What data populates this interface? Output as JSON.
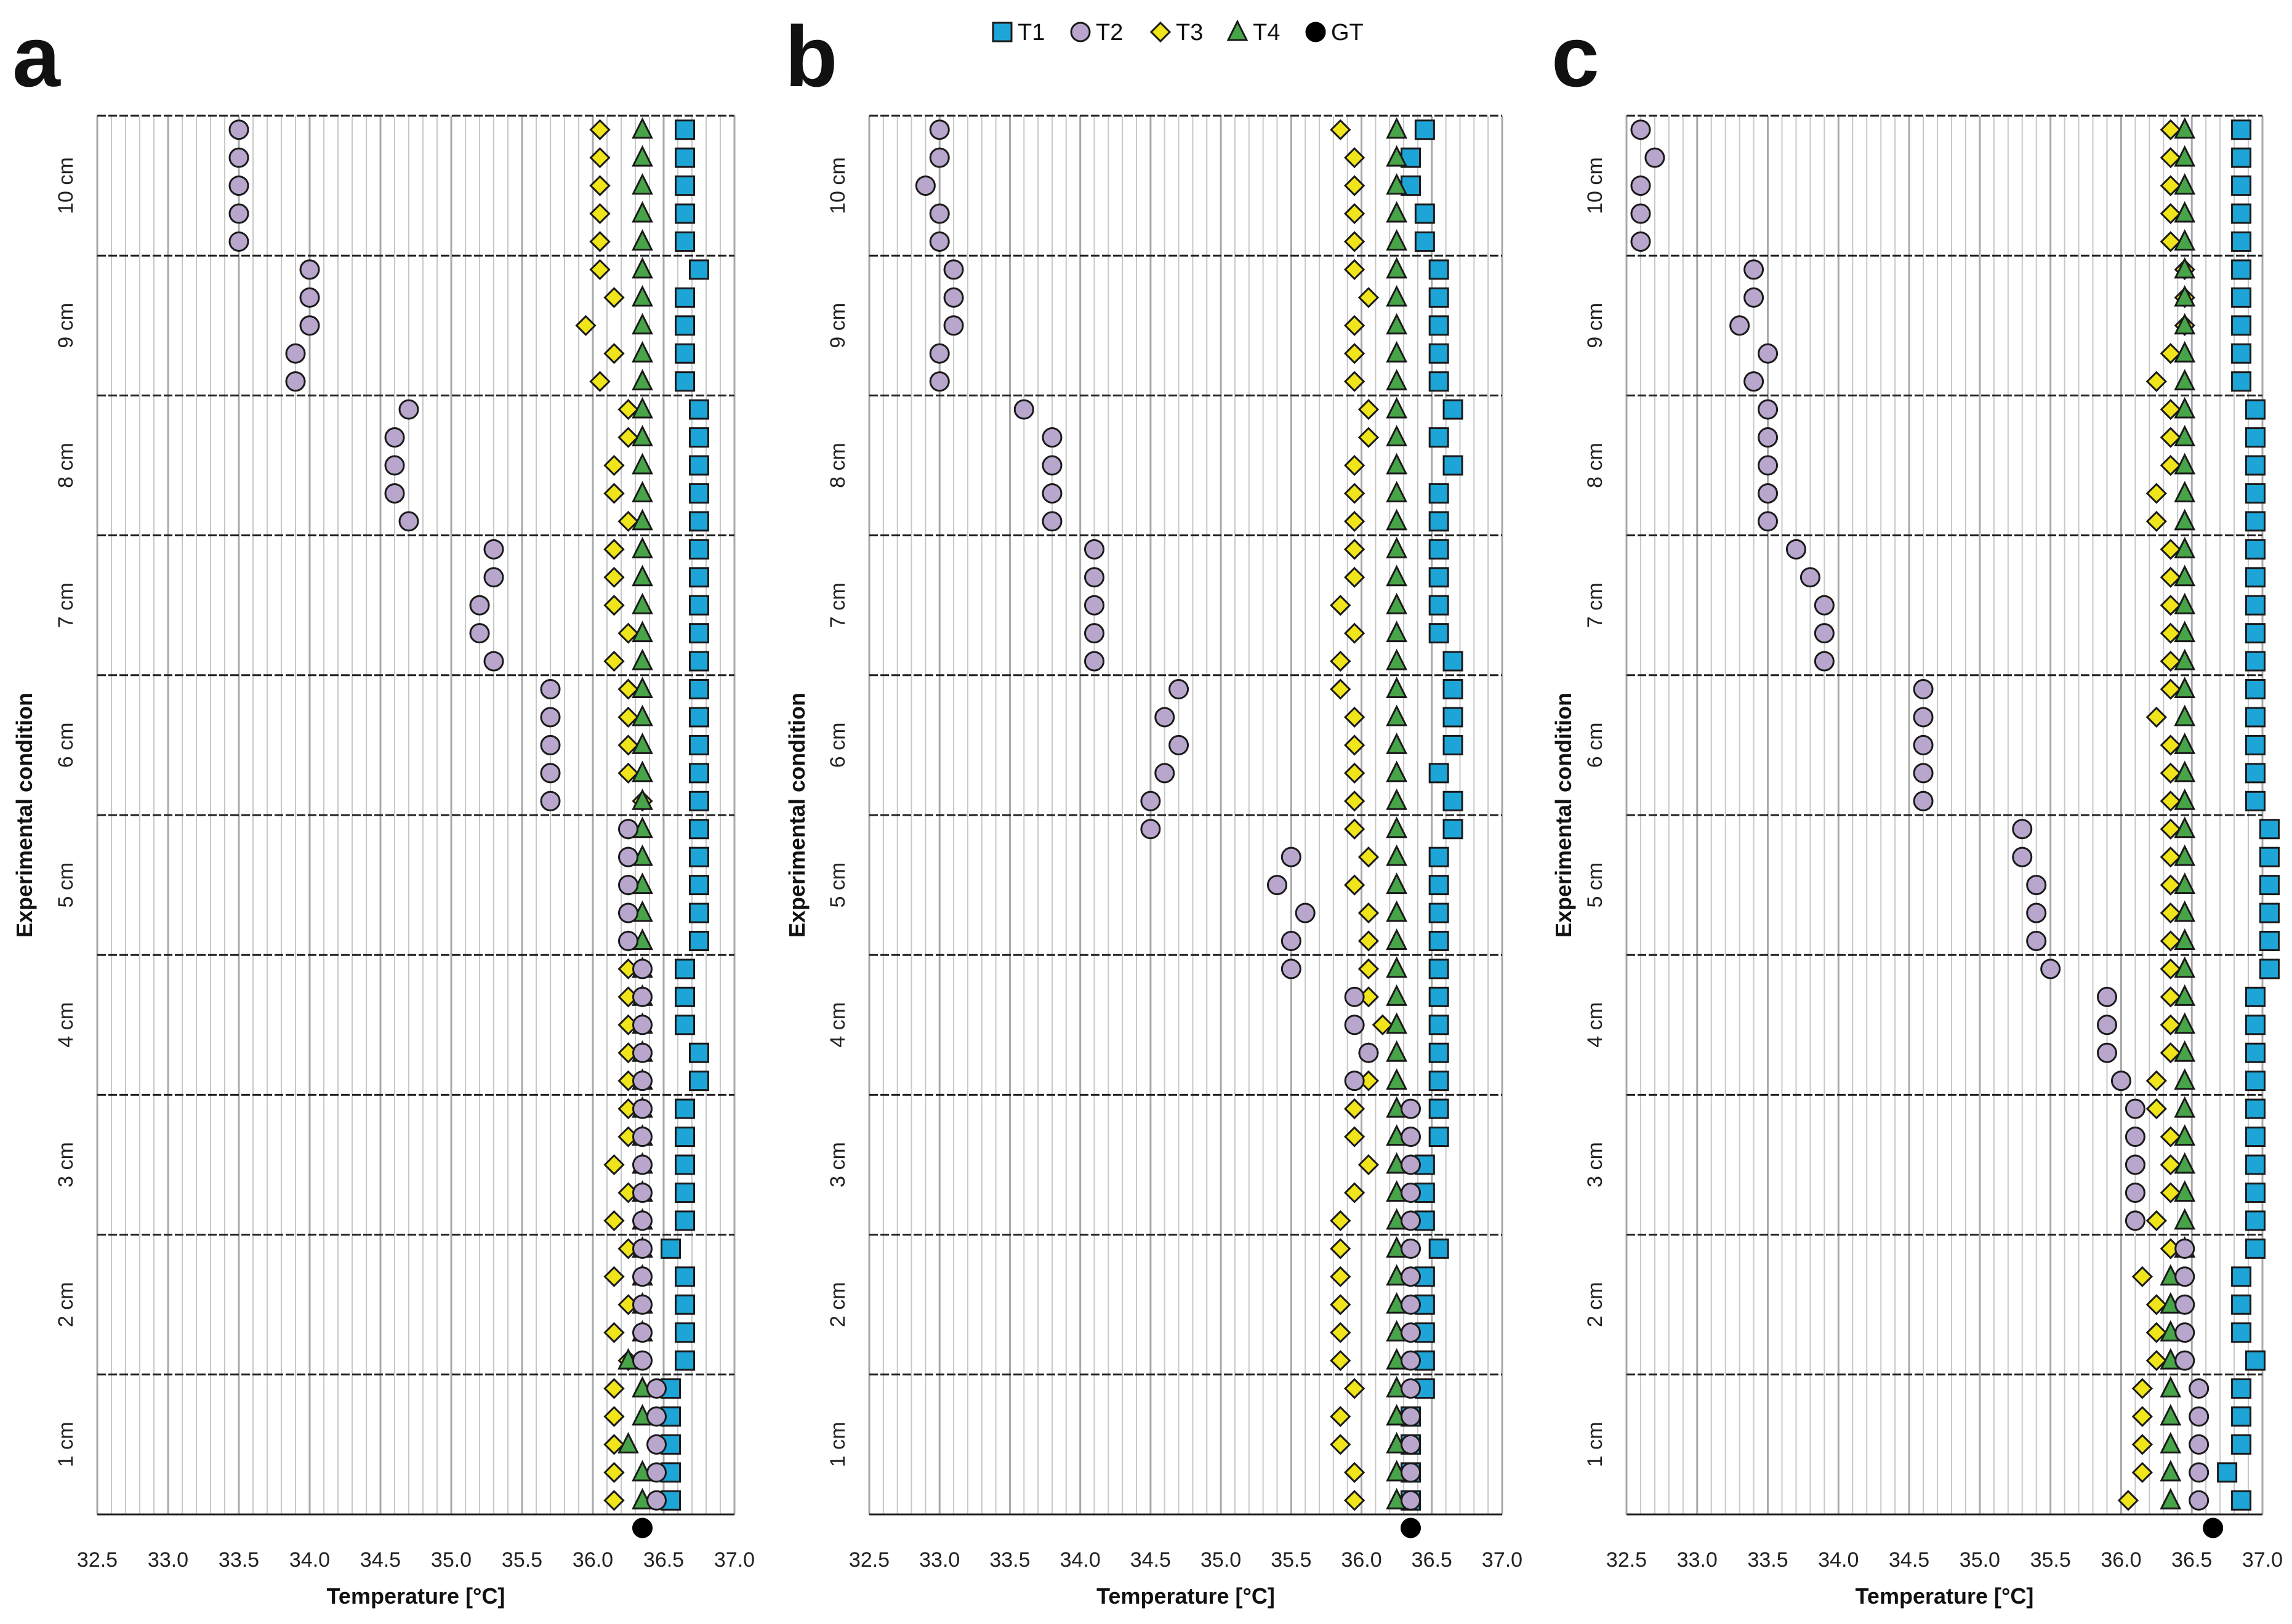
{
  "legend": [
    {
      "key": "T1",
      "label": "T1",
      "shape": "square",
      "color": "#1ea5d8"
    },
    {
      "key": "T2",
      "label": "T2",
      "shape": "circle",
      "color": "#b8a6cc"
    },
    {
      "key": "T3",
      "label": "T3",
      "shape": "diamond",
      "color": "#f0e41a"
    },
    {
      "key": "T4",
      "label": "T4",
      "shape": "triangle",
      "color": "#48a448"
    },
    {
      "key": "GT",
      "label": "GT",
      "shape": "dot",
      "color": "#000000"
    }
  ],
  "chart_data": [
    {
      "panel": "a",
      "type": "scatter",
      "xlabel": "Temperature [°C]",
      "ylabel": "Experimental condition",
      "xlim": [
        32.5,
        37.0
      ],
      "xticks": [
        "32.5",
        "33.0",
        "33.5",
        "34.0",
        "34.5",
        "35.0",
        "35.5",
        "36.0",
        "36.5",
        "37.0"
      ],
      "categories": [
        "10 cm",
        "9 cm",
        "8 cm",
        "7 cm",
        "6 cm",
        "5 cm",
        "4 cm",
        "3 cm",
        "2 cm",
        "1 cm"
      ],
      "ground_truth": 36.35,
      "series": {
        "T1": [
          [
            36.65,
            36.65,
            36.65,
            36.65,
            36.65
          ],
          [
            36.75,
            36.65,
            36.65,
            36.65,
            36.65
          ],
          [
            36.75,
            36.75,
            36.75,
            36.75,
            36.75
          ],
          [
            36.75,
            36.75,
            36.75,
            36.75,
            36.75
          ],
          [
            36.75,
            36.75,
            36.75,
            36.75,
            36.75
          ],
          [
            36.75,
            36.75,
            36.75,
            36.75,
            36.75
          ],
          [
            36.65,
            36.65,
            36.65,
            36.75,
            36.75
          ],
          [
            36.65,
            36.65,
            36.65,
            36.65,
            36.65
          ],
          [
            36.55,
            36.65,
            36.65,
            36.65,
            36.65
          ],
          [
            36.55,
            36.55,
            36.55,
            36.55,
            36.55
          ]
        ],
        "T2": [
          [
            33.5,
            33.5,
            33.5,
            33.5,
            33.5
          ],
          [
            34.0,
            34.0,
            34.0,
            33.9,
            33.9
          ],
          [
            34.7,
            34.6,
            34.6,
            34.6,
            34.7
          ],
          [
            35.3,
            35.3,
            35.2,
            35.2,
            35.3
          ],
          [
            35.7,
            35.7,
            35.7,
            35.7,
            35.7
          ],
          [
            36.25,
            36.25,
            36.25,
            36.25,
            36.25
          ],
          [
            36.35,
            36.35,
            36.35,
            36.35,
            36.35
          ],
          [
            36.35,
            36.35,
            36.35,
            36.35,
            36.35
          ],
          [
            36.35,
            36.35,
            36.35,
            36.35,
            36.35
          ],
          [
            36.45,
            36.45,
            36.45,
            36.45,
            36.45
          ]
        ],
        "T3": [
          [
            36.05,
            36.05,
            36.05,
            36.05,
            36.05
          ],
          [
            36.05,
            36.15,
            35.95,
            36.15,
            36.05
          ],
          [
            36.25,
            36.25,
            36.15,
            36.15,
            36.25
          ],
          [
            36.15,
            36.15,
            36.15,
            36.25,
            36.15
          ],
          [
            36.25,
            36.25,
            36.25,
            36.25,
            36.35
          ],
          [
            36.25,
            36.25,
            36.25,
            36.25,
            36.25
          ],
          [
            36.25,
            36.25,
            36.25,
            36.25,
            36.25
          ],
          [
            36.25,
            36.25,
            36.15,
            36.25,
            36.15
          ],
          [
            36.25,
            36.15,
            36.25,
            36.15,
            36.25
          ],
          [
            36.15,
            36.15,
            36.15,
            36.15,
            36.15
          ]
        ],
        "T4": [
          [
            36.35,
            36.35,
            36.35,
            36.35,
            36.35
          ],
          [
            36.35,
            36.35,
            36.35,
            36.35,
            36.35
          ],
          [
            36.35,
            36.35,
            36.35,
            36.35,
            36.35
          ],
          [
            36.35,
            36.35,
            36.35,
            36.35,
            36.35
          ],
          [
            36.35,
            36.35,
            36.35,
            36.35,
            36.35
          ],
          [
            36.35,
            36.35,
            36.35,
            36.35,
            36.35
          ],
          [
            36.35,
            36.35,
            36.35,
            36.35,
            36.35
          ],
          [
            36.35,
            36.35,
            36.35,
            36.35,
            36.35
          ],
          [
            36.35,
            36.35,
            36.35,
            36.35,
            36.25
          ],
          [
            36.35,
            36.35,
            36.25,
            36.35,
            36.35
          ]
        ]
      }
    },
    {
      "panel": "b",
      "type": "scatter",
      "xlabel": "Temperature [°C]",
      "ylabel": "Experimental condition",
      "xlim": [
        32.5,
        37.0
      ],
      "xticks": [
        "32.5",
        "33.0",
        "33.5",
        "34.0",
        "34.5",
        "35.0",
        "35.5",
        "36.0",
        "36.5",
        "37.0"
      ],
      "categories": [
        "10 cm",
        "9 cm",
        "8 cm",
        "7 cm",
        "6 cm",
        "5 cm",
        "4 cm",
        "3 cm",
        "2 cm",
        "1 cm"
      ],
      "ground_truth": 36.35,
      "series": {
        "T1": [
          [
            36.45,
            36.35,
            36.35,
            36.45,
            36.45
          ],
          [
            36.55,
            36.55,
            36.55,
            36.55,
            36.55
          ],
          [
            36.65,
            36.55,
            36.65,
            36.55,
            36.55
          ],
          [
            36.55,
            36.55,
            36.55,
            36.55,
            36.65
          ],
          [
            36.65,
            36.65,
            36.65,
            36.55,
            36.65
          ],
          [
            36.65,
            36.55,
            36.55,
            36.55,
            36.55
          ],
          [
            36.55,
            36.55,
            36.55,
            36.55,
            36.55
          ],
          [
            36.55,
            36.55,
            36.45,
            36.45,
            36.45
          ],
          [
            36.55,
            36.45,
            36.45,
            36.45,
            36.45
          ],
          [
            36.45,
            36.35,
            36.35,
            36.35,
            36.35
          ]
        ],
        "T2": [
          [
            33.0,
            33.0,
            32.9,
            33.0,
            33.0
          ],
          [
            33.1,
            33.1,
            33.1,
            33.0,
            33.0
          ],
          [
            33.6,
            33.8,
            33.8,
            33.8,
            33.8
          ],
          [
            34.1,
            34.1,
            34.1,
            34.1,
            34.1
          ],
          [
            34.7,
            34.6,
            34.7,
            34.6,
            34.5
          ],
          [
            34.5,
            35.5,
            35.4,
            35.6,
            35.5
          ],
          [
            35.5,
            35.95,
            35.95,
            36.05,
            35.95
          ],
          [
            36.35,
            36.35,
            36.35,
            36.35,
            36.35
          ],
          [
            36.35,
            36.35,
            36.35,
            36.35,
            36.35
          ],
          [
            36.35,
            36.35,
            36.35,
            36.35,
            36.35
          ]
        ],
        "T3": [
          [
            35.85,
            35.95,
            35.95,
            35.95,
            35.95
          ],
          [
            35.95,
            36.05,
            35.95,
            35.95,
            35.95
          ],
          [
            36.05,
            36.05,
            35.95,
            35.95,
            35.95
          ],
          [
            35.95,
            35.95,
            35.85,
            35.95,
            35.85
          ],
          [
            35.85,
            35.95,
            35.95,
            35.95,
            35.95
          ],
          [
            35.95,
            36.05,
            35.95,
            36.05,
            36.05
          ],
          [
            36.05,
            36.05,
            36.15,
            36.05,
            36.05
          ],
          [
            35.95,
            35.95,
            36.05,
            35.95,
            35.85
          ],
          [
            35.85,
            35.85,
            35.85,
            35.85,
            35.85
          ],
          [
            35.95,
            35.85,
            35.85,
            35.95,
            35.95
          ]
        ],
        "T4": [
          [
            36.25,
            36.25,
            36.25,
            36.25,
            36.25
          ],
          [
            36.25,
            36.25,
            36.25,
            36.25,
            36.25
          ],
          [
            36.25,
            36.25,
            36.25,
            36.25,
            36.25
          ],
          [
            36.25,
            36.25,
            36.25,
            36.25,
            36.25
          ],
          [
            36.25,
            36.25,
            36.25,
            36.25,
            36.25
          ],
          [
            36.25,
            36.25,
            36.25,
            36.25,
            36.25
          ],
          [
            36.25,
            36.25,
            36.25,
            36.25,
            36.25
          ],
          [
            36.25,
            36.25,
            36.25,
            36.25,
            36.25
          ],
          [
            36.25,
            36.25,
            36.25,
            36.25,
            36.25
          ],
          [
            36.25,
            36.25,
            36.25,
            36.25,
            36.25
          ]
        ]
      }
    },
    {
      "panel": "c",
      "type": "scatter",
      "xlabel": "Temperature [°C]",
      "ylabel": "Experimental condition",
      "xlim": [
        32.5,
        37.0
      ],
      "xticks": [
        "32.5",
        "33.0",
        "33.5",
        "34.0",
        "34.5",
        "35.0",
        "35.5",
        "36.0",
        "36.5",
        "37.0"
      ],
      "categories": [
        "10 cm",
        "9 cm",
        "8 cm",
        "7 cm",
        "6 cm",
        "5 cm",
        "4 cm",
        "3 cm",
        "2 cm",
        "1 cm"
      ],
      "ground_truth": 36.65,
      "series": {
        "T1": [
          [
            36.85,
            36.85,
            36.85,
            36.85,
            36.85
          ],
          [
            36.85,
            36.85,
            36.85,
            36.85,
            36.85
          ],
          [
            36.95,
            36.95,
            36.95,
            36.95,
            36.95
          ],
          [
            36.95,
            36.95,
            36.95,
            36.95,
            36.95
          ],
          [
            36.95,
            36.95,
            36.95,
            36.95,
            36.95
          ],
          [
            37.05,
            37.05,
            37.05,
            37.05,
            37.05
          ],
          [
            37.05,
            36.95,
            36.95,
            36.95,
            36.95
          ],
          [
            36.95,
            36.95,
            36.95,
            36.95,
            36.95
          ],
          [
            36.95,
            36.85,
            36.85,
            36.85,
            36.95
          ],
          [
            36.85,
            36.85,
            36.85,
            36.75,
            36.85
          ]
        ],
        "T2": [
          [
            32.6,
            32.7,
            32.6,
            32.6,
            32.6
          ],
          [
            33.4,
            33.4,
            33.3,
            33.5,
            33.4
          ],
          [
            33.5,
            33.5,
            33.5,
            33.5,
            33.5
          ],
          [
            33.7,
            33.8,
            33.9,
            33.9,
            33.9
          ],
          [
            34.6,
            34.6,
            34.6,
            34.6,
            34.6
          ],
          [
            35.3,
            35.3,
            35.4,
            35.4,
            35.4
          ],
          [
            35.5,
            35.9,
            35.9,
            35.9,
            36.0
          ],
          [
            36.1,
            36.1,
            36.1,
            36.1,
            36.1
          ],
          [
            36.45,
            36.45,
            36.45,
            36.45,
            36.45
          ],
          [
            36.55,
            36.55,
            36.55,
            36.55,
            36.55
          ]
        ],
        "T3": [
          [
            36.35,
            36.35,
            36.35,
            36.35,
            36.35
          ],
          [
            36.45,
            36.45,
            36.45,
            36.35,
            36.25
          ],
          [
            36.35,
            36.35,
            36.35,
            36.25,
            36.25
          ],
          [
            36.35,
            36.35,
            36.35,
            36.35,
            36.35
          ],
          [
            36.35,
            36.25,
            36.35,
            36.35,
            36.35
          ],
          [
            36.35,
            36.35,
            36.35,
            36.35,
            36.35
          ],
          [
            36.35,
            36.35,
            36.35,
            36.35,
            36.25
          ],
          [
            36.25,
            36.35,
            36.35,
            36.35,
            36.25
          ],
          [
            36.35,
            36.15,
            36.25,
            36.25,
            36.25
          ],
          [
            36.15,
            36.15,
            36.15,
            36.15,
            36.05
          ]
        ],
        "T4": [
          [
            36.45,
            36.45,
            36.45,
            36.45,
            36.45
          ],
          [
            36.45,
            36.45,
            36.45,
            36.45,
            36.45
          ],
          [
            36.45,
            36.45,
            36.45,
            36.45,
            36.45
          ],
          [
            36.45,
            36.45,
            36.45,
            36.45,
            36.45
          ],
          [
            36.45,
            36.45,
            36.45,
            36.45,
            36.45
          ],
          [
            36.45,
            36.45,
            36.45,
            36.45,
            36.45
          ],
          [
            36.45,
            36.45,
            36.45,
            36.45,
            36.45
          ],
          [
            36.45,
            36.45,
            36.45,
            36.45,
            36.45
          ],
          [
            36.45,
            36.35,
            36.35,
            36.35,
            36.35
          ],
          [
            36.35,
            36.35,
            36.35,
            36.35,
            36.35
          ]
        ]
      }
    }
  ]
}
